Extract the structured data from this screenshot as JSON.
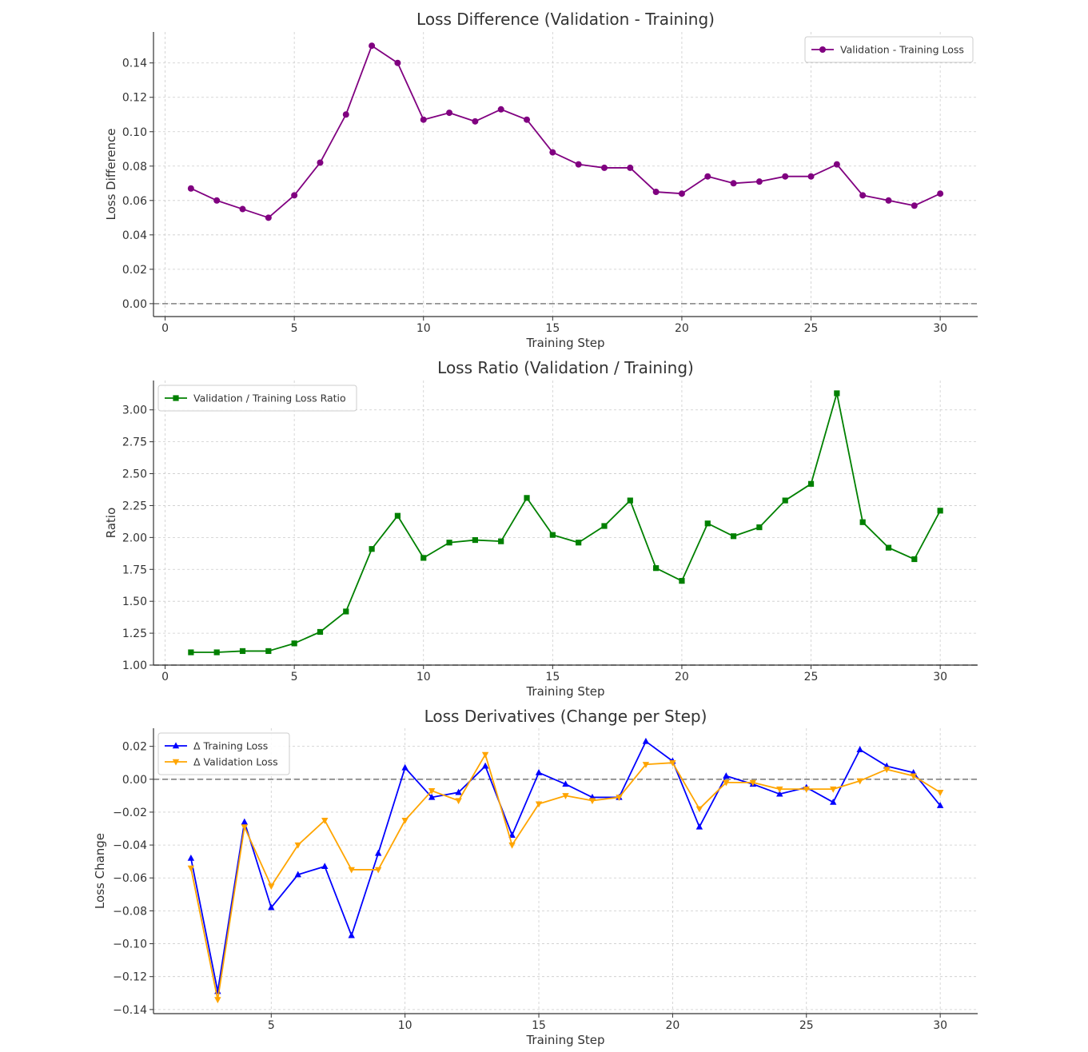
{
  "chart_data": [
    {
      "type": "line",
      "title": "Loss Difference (Validation - Training)",
      "xlabel": "Training Step",
      "ylabel": "Loss Difference",
      "xlim": [
        -0.45,
        31.45
      ],
      "ylim": [
        -0.0075,
        0.158
      ],
      "xticks": [
        0,
        5,
        10,
        15,
        20,
        25,
        30
      ],
      "yticks": [
        0.0,
        0.02,
        0.04,
        0.06,
        0.08,
        0.1,
        0.12,
        0.14
      ],
      "ytick_decimals": 2,
      "reference_line": 0,
      "legend_position": "upper-right",
      "series": [
        {
          "name": "Validation - Training Loss",
          "color": "#800080",
          "marker": "circle",
          "x": [
            1,
            2,
            3,
            4,
            5,
            6,
            7,
            8,
            9,
            10,
            11,
            12,
            13,
            14,
            15,
            16,
            17,
            18,
            19,
            20,
            21,
            22,
            23,
            24,
            25,
            26,
            27,
            28,
            29,
            30
          ],
          "values": [
            0.067,
            0.06,
            0.055,
            0.05,
            0.063,
            0.082,
            0.11,
            0.15,
            0.14,
            0.107,
            0.111,
            0.106,
            0.113,
            0.107,
            0.088,
            0.081,
            0.079,
            0.079,
            0.065,
            0.064,
            0.074,
            0.07,
            0.071,
            0.074,
            0.074,
            0.081,
            0.063,
            0.06,
            0.057,
            0.064
          ]
        }
      ]
    },
    {
      "type": "line",
      "title": "Loss Ratio (Validation / Training)",
      "xlabel": "Training Step",
      "ylabel": "Ratio",
      "xlim": [
        -0.45,
        31.45
      ],
      "ylim": [
        1.0,
        3.23
      ],
      "xticks": [
        0,
        5,
        10,
        15,
        20,
        25,
        30
      ],
      "yticks": [
        1.0,
        1.25,
        1.5,
        1.75,
        2.0,
        2.25,
        2.5,
        2.75,
        3.0
      ],
      "ytick_decimals": 2,
      "reference_line": 1,
      "legend_position": "upper-left",
      "series": [
        {
          "name": "Validation / Training Loss Ratio",
          "color": "#008000",
          "marker": "square",
          "x": [
            1,
            2,
            3,
            4,
            5,
            6,
            7,
            8,
            9,
            10,
            11,
            12,
            13,
            14,
            15,
            16,
            17,
            18,
            19,
            20,
            21,
            22,
            23,
            24,
            25,
            26,
            27,
            28,
            29,
            30
          ],
          "values": [
            1.1,
            1.1,
            1.11,
            1.11,
            1.17,
            1.26,
            1.42,
            1.91,
            2.17,
            1.84,
            1.96,
            1.98,
            1.97,
            2.31,
            2.02,
            1.96,
            2.09,
            2.29,
            1.76,
            1.66,
            2.11,
            2.01,
            2.08,
            2.29,
            2.42,
            3.13,
            2.12,
            1.92,
            1.83,
            2.21
          ]
        }
      ]
    },
    {
      "type": "line",
      "title": "Loss Derivatives (Change per Step)",
      "xlabel": "Training Step",
      "ylabel": "Loss Change",
      "xlim": [
        0.6,
        31.4
      ],
      "ylim": [
        -0.1425,
        0.031
      ],
      "xticks": [
        5,
        10,
        15,
        20,
        25,
        30
      ],
      "yticks": [
        -0.14,
        -0.12,
        -0.1,
        -0.08,
        -0.06,
        -0.04,
        -0.02,
        0.0,
        0.02
      ],
      "ytick_decimals": 2,
      "reference_line": 0,
      "legend_position": "upper-left",
      "series": [
        {
          "name": "Δ Training Loss",
          "color": "#0000ff",
          "marker": "triangle-up",
          "x": [
            2,
            3,
            4,
            5,
            6,
            7,
            8,
            9,
            10,
            11,
            12,
            13,
            14,
            15,
            16,
            17,
            18,
            19,
            20,
            21,
            22,
            23,
            24,
            25,
            26,
            27,
            28,
            29,
            30
          ],
          "values": [
            -0.048,
            -0.129,
            -0.026,
            -0.078,
            -0.058,
            -0.053,
            -0.095,
            -0.045,
            0.007,
            -0.011,
            -0.008,
            0.008,
            -0.034,
            0.004,
            -0.003,
            -0.011,
            -0.011,
            0.023,
            0.011,
            -0.029,
            0.002,
            -0.003,
            -0.009,
            -0.005,
            -0.014,
            0.018,
            0.008,
            0.004,
            -0.016
          ]
        },
        {
          "name": "Δ Validation Loss",
          "color": "#ffa500",
          "marker": "triangle-down",
          "x": [
            2,
            3,
            4,
            5,
            6,
            7,
            8,
            9,
            10,
            11,
            12,
            13,
            14,
            15,
            16,
            17,
            18,
            19,
            20,
            21,
            22,
            23,
            24,
            25,
            26,
            27,
            28,
            29,
            30
          ],
          "values": [
            -0.054,
            -0.134,
            -0.029,
            -0.065,
            -0.04,
            -0.025,
            -0.055,
            -0.055,
            -0.025,
            -0.007,
            -0.013,
            0.015,
            -0.04,
            -0.015,
            -0.01,
            -0.013,
            -0.011,
            0.009,
            0.01,
            -0.018,
            -0.002,
            -0.002,
            -0.006,
            -0.006,
            -0.006,
            -0.001,
            0.006,
            0.002,
            -0.008
          ]
        }
      ]
    }
  ]
}
